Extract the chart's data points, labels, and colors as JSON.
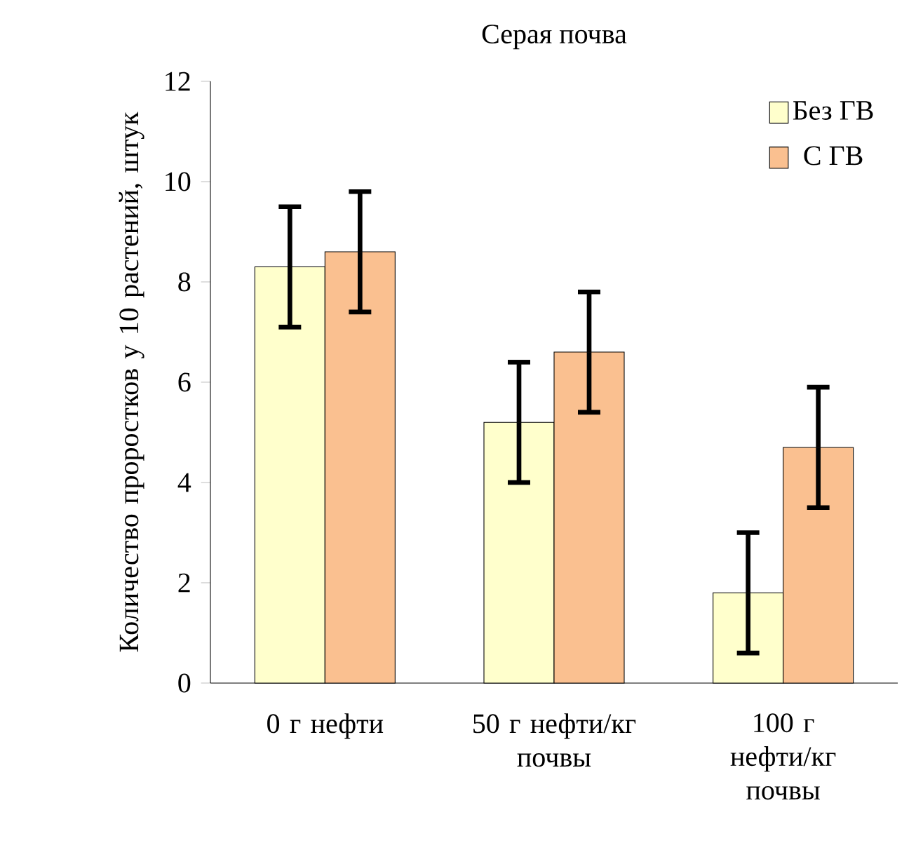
{
  "chart_data": {
    "type": "bar",
    "title": "Серая почва",
    "ylabel": "Количество проростков у 10 растений, штук",
    "categories": [
      "0 г нефти",
      "50 г нефти/кг почвы",
      "100 г нефти/кг почвы"
    ],
    "series": [
      {
        "name": "Без ГВ",
        "color": "#ffffcc",
        "values": [
          8.3,
          5.2,
          1.8
        ],
        "errors": [
          1.2,
          1.2,
          1.2
        ]
      },
      {
        "name": "С ГВ",
        "color": "#fac090",
        "values": [
          8.6,
          6.6,
          4.7
        ],
        "errors": [
          1.2,
          1.2,
          1.2
        ]
      }
    ],
    "ylim": [
      0,
      12
    ],
    "yticks": [
      0,
      2,
      4,
      6,
      8,
      10,
      12
    ],
    "legend": "top right"
  }
}
